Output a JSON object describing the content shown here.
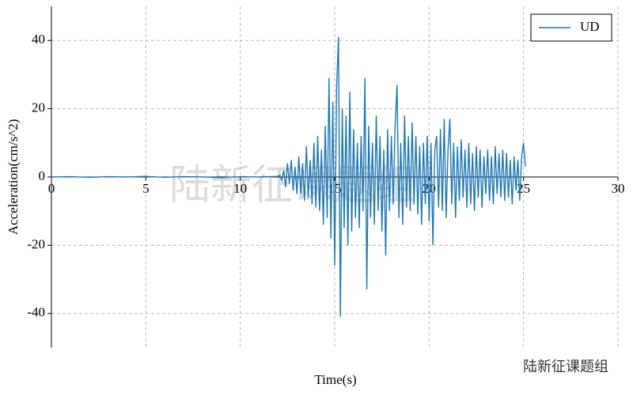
{
  "chart_data": {
    "type": "line",
    "xlabel": "Time(s)",
    "ylabel": "Acceleration(cm/s^2)",
    "annotations": [
      "陆新征课题组",
      "陆新征课题组"
    ],
    "xlim": [
      0,
      30
    ],
    "ylim": [
      -50,
      50
    ],
    "xticks": [
      0,
      5,
      10,
      15,
      20,
      25,
      30
    ],
    "yticks": [
      -40,
      -20,
      0,
      20,
      40
    ],
    "grid": true,
    "legend": "upper right",
    "x": [
      0,
      1,
      2,
      3,
      4,
      5,
      6,
      7,
      8,
      9,
      10,
      11,
      12,
      12.1,
      12.2,
      12.3,
      12.4,
      12.5,
      12.6,
      12.7,
      12.8,
      12.9,
      13.0,
      13.1,
      13.2,
      13.3,
      13.4,
      13.5,
      13.6,
      13.7,
      13.8,
      13.9,
      14.0,
      14.1,
      14.2,
      14.3,
      14.4,
      14.5,
      14.6,
      14.7,
      14.8,
      14.9,
      15.0,
      15.1,
      15.2,
      15.3,
      15.4,
      15.5,
      15.6,
      15.7,
      15.8,
      15.9,
      16.0,
      16.1,
      16.2,
      16.3,
      16.4,
      16.5,
      16.6,
      16.7,
      16.8,
      16.9,
      17.0,
      17.1,
      17.2,
      17.3,
      17.4,
      17.5,
      17.6,
      17.7,
      17.8,
      17.9,
      18.0,
      18.1,
      18.2,
      18.3,
      18.4,
      18.5,
      18.6,
      18.7,
      18.8,
      18.9,
      19.0,
      19.1,
      19.2,
      19.3,
      19.4,
      19.5,
      19.6,
      19.7,
      19.8,
      19.9,
      20.0,
      20.1,
      20.2,
      20.3,
      20.4,
      20.5,
      20.6,
      20.7,
      20.8,
      20.9,
      21.0,
      21.1,
      21.2,
      21.3,
      21.4,
      21.5,
      21.6,
      21.7,
      21.8,
      21.9,
      22.0,
      22.1,
      22.2,
      22.3,
      22.4,
      22.5,
      22.6,
      22.7,
      22.8,
      22.9,
      23.0,
      23.1,
      23.2,
      23.3,
      23.4,
      23.5,
      23.6,
      23.7,
      23.8,
      23.9,
      24.0,
      24.1,
      24.2,
      24.3,
      24.4,
      24.5,
      24.6,
      24.7,
      24.8,
      24.9,
      25.0,
      25.1
    ],
    "series": [
      {
        "name": "UD",
        "color": "#1f77b4",
        "values": [
          0,
          0.1,
          -0.1,
          0.1,
          0,
          0.2,
          -0.1,
          0.1,
          0,
          -0.2,
          0.1,
          0,
          0.2,
          0.5,
          -1,
          2,
          -3,
          4,
          -2,
          5,
          -4,
          3,
          -5,
          6,
          -5,
          4,
          -7,
          9,
          -6,
          5,
          -8,
          10,
          -9,
          12,
          -10,
          8,
          -14,
          15,
          -12,
          29,
          -18,
          22,
          -26,
          26,
          41,
          -41,
          20,
          -15,
          18,
          -20,
          25,
          -16,
          14,
          -12,
          10,
          -15,
          12,
          -10,
          29,
          -33,
          15,
          -12,
          10,
          -14,
          18,
          -10,
          12,
          -16,
          8,
          -23,
          14,
          -10,
          12,
          -8,
          15,
          27,
          -12,
          10,
          -14,
          18,
          -9,
          12,
          -10,
          16,
          -8,
          12,
          -11,
          9,
          -14,
          10,
          -8,
          12,
          -13,
          10,
          -20,
          8,
          12,
          -9,
          14,
          -10,
          17,
          -12,
          8,
          17,
          -8,
          10,
          -12,
          9,
          -7,
          11,
          -6,
          8,
          -9,
          10,
          -8,
          7,
          -10,
          9,
          -6,
          8,
          -9,
          6,
          -5,
          8,
          -7,
          6,
          -8,
          9,
          -5,
          7,
          -6,
          8,
          -7,
          7,
          -6,
          5,
          -8,
          6,
          -4,
          5,
          -7,
          6,
          10,
          3
        ]
      }
    ]
  }
}
